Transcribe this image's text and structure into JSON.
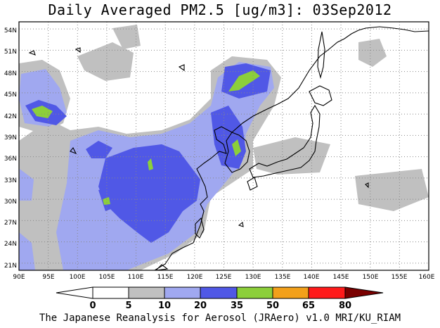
{
  "title": "Daily Averaged PM2.5 [ug/m3]: 03Sep2012",
  "credit": "The Japanese Reanalysis for Aerosol (JRAero) v1.0 MRI/KU_RIAM",
  "map": {
    "lon_range": [
      90,
      160
    ],
    "lat_range": [
      20,
      55
    ],
    "lat_labels": [
      "21N",
      "24N",
      "27N",
      "30N",
      "33N",
      "36N",
      "39N",
      "42N",
      "45N",
      "48N",
      "51N",
      "54N"
    ],
    "lon_labels": [
      "90E",
      "95E",
      "100E",
      "105E",
      "110E",
      "115E",
      "120E",
      "125E",
      "130E",
      "135E",
      "140E",
      "145E",
      "150E",
      "155E",
      "160E"
    ],
    "grid": "dotted"
  },
  "colorbar": {
    "labels": [
      "0",
      "5",
      "10",
      "20",
      "35",
      "50",
      "65",
      "80"
    ],
    "colors": [
      "#ffffff",
      "#c0c0c0",
      "#a0a8f0",
      "#5058e6",
      "#8ccf3a",
      "#f2a01a",
      "#ff1a1a",
      "#7a0000"
    ]
  }
}
